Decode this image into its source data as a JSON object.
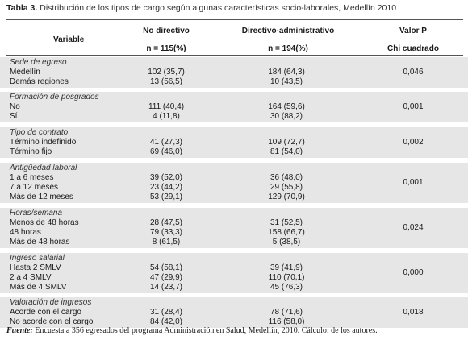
{
  "caption": {
    "label": "Tabla 3.",
    "text": "Distribución de los tipos de cargo según algunas características socio-laborales, Medellín 2010"
  },
  "headers": {
    "variable": "Variable",
    "no_directivo": "No directivo",
    "directivo": "Directivo-administrativo",
    "valor_p": "Valor P",
    "n_no_directivo": "n = 115(%)",
    "n_directivo": "n = 194(%)",
    "chi": "Chi cuadrado"
  },
  "groups": [
    {
      "title": "Sede de egreso",
      "p": "0,046",
      "rows": [
        {
          "label": "Medellín",
          "nd": "102 (35,7)",
          "da": "184 (64,3)"
        },
        {
          "label": "Demás regiones",
          "nd": "13 (56,5)",
          "da": "10 (43,5)"
        }
      ]
    },
    {
      "title": "Formación de posgrados",
      "p": "0,001",
      "rows": [
        {
          "label": "No",
          "nd": "111 (40,4)",
          "da": "164 (59,6)"
        },
        {
          "label": "Sí",
          "nd": "4 (11,8)",
          "da": "30 (88,2)"
        }
      ]
    },
    {
      "title": "Tipo de contrato",
      "p": "0,002",
      "rows": [
        {
          "label": "Término indefinido",
          "nd": "41 (27,3)",
          "da": "109 (72,7)"
        },
        {
          "label": "Término fijo",
          "nd": "69 (46,0)",
          "da": "81 (54,0)"
        }
      ]
    },
    {
      "title": "Antigüedad laboral",
      "p": "0,001",
      "rows": [
        {
          "label": "1 a 6 meses",
          "nd": "39 (52,0)",
          "da": "36 (48,0)"
        },
        {
          "label": "7 a 12 meses",
          "nd": "23 (44,2)",
          "da": "29 (55,8)"
        },
        {
          "label": "Más de 12 meses",
          "nd": "53 (29,1)",
          "da": "129 (70,9)"
        }
      ]
    },
    {
      "title": "Horas/semana",
      "p": "0,024",
      "rows": [
        {
          "label": "Menos de 48 horas",
          "nd": "28 (47,5)",
          "da": "31 (52,5)"
        },
        {
          "label": "48 horas",
          "nd": "79 (33,3)",
          "da": "158 (66,7)"
        },
        {
          "label": "Más de 48 horas",
          "nd": "8 (61,5)",
          "da": "5 (38,5)"
        }
      ]
    },
    {
      "title": "Ingreso salarial",
      "p": "0,000",
      "rows": [
        {
          "label": "Hasta 2 SMLV",
          "nd": "54 (58,1)",
          "da": "39 (41,9)"
        },
        {
          "label": "2 a 4 SMLV",
          "nd": "47 (29,9)",
          "da": "110 (70,1)"
        },
        {
          "label": "Más de 4 SMLV",
          "nd": "14 (23,7)",
          "da": "45 (76,3)"
        }
      ]
    },
    {
      "title": "Valoración de ingresos",
      "p": "0,018",
      "rows": [
        {
          "label": "Acorde con el cargo",
          "nd": "31 (28,4)",
          "da": "78 (71,6)"
        },
        {
          "label": "No acorde con el cargo",
          "nd": "84 (42,0)",
          "da": "116 (58,0)"
        }
      ]
    }
  ],
  "footer": {
    "label": "Fuente:",
    "text": "Encuesta a 356 egresados del programa Administración en Salud, Medellín, 2010. Cálculo: de los autores."
  }
}
